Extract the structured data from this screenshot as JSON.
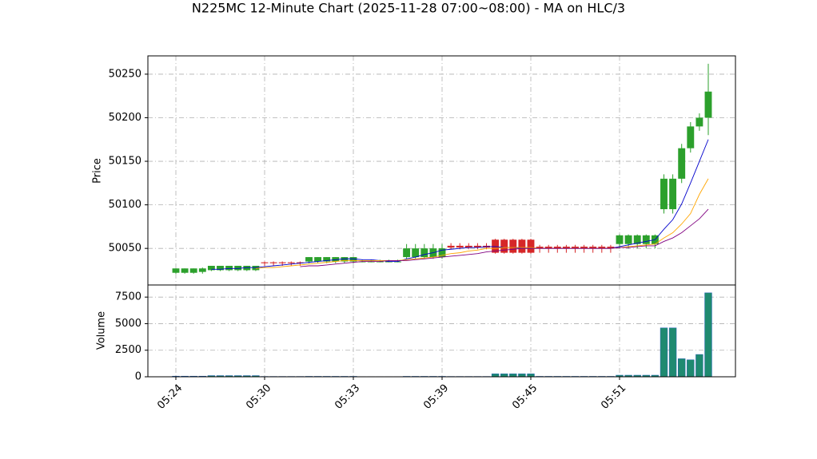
{
  "chart_data": [
    {
      "type": "candlestick",
      "title": "N225MC 12-Minute Chart (2025-11-28 07:00~08:00) - MA on HLC/3",
      "ylabel": "Price",
      "up_color": "#2ca02c",
      "down_color": "#d62728",
      "open": [
        50022,
        50022,
        50022,
        50023,
        50025,
        50025,
        50025,
        50025,
        50025,
        50025,
        50034,
        50034,
        50034,
        50034,
        50034,
        50035,
        50035,
        50035,
        50035,
        50035,
        50035,
        50035,
        50035,
        50035,
        50035,
        50035,
        50040,
        50040,
        50040,
        50040,
        50040,
        50053,
        50053,
        50053,
        50053,
        50053,
        50060,
        50060,
        50060,
        50060,
        50060,
        50052,
        50052,
        50052,
        50052,
        50052,
        50052,
        50052,
        50052,
        50052,
        50055,
        50055,
        50055,
        50055,
        50055,
        50095,
        50095,
        50130,
        50165,
        50190,
        50200
      ],
      "high": [
        50027,
        50027,
        50027,
        50028,
        50030,
        50030,
        50030,
        50030,
        50030,
        50030,
        50035,
        50035,
        50035,
        50035,
        50035,
        50040,
        50040,
        50040,
        50040,
        50040,
        50040,
        50037,
        50037,
        50037,
        50037,
        50037,
        50055,
        50055,
        50055,
        50055,
        50055,
        50056,
        50056,
        50056,
        50056,
        50056,
        50061,
        50061,
        50061,
        50061,
        50061,
        50054,
        50054,
        50054,
        50054,
        50054,
        50054,
        50054,
        50054,
        50054,
        50066,
        50066,
        50066,
        50066,
        50066,
        50135,
        50135,
        50170,
        50195,
        50205,
        50262
      ],
      "low": [
        50021,
        50021,
        50021,
        50021,
        50024,
        50024,
        50024,
        50024,
        50024,
        50024,
        50030,
        50030,
        50030,
        50030,
        50030,
        50033,
        50033,
        50033,
        50033,
        50033,
        50033,
        50034,
        50034,
        50034,
        50034,
        50034,
        50038,
        50038,
        50038,
        50038,
        50038,
        50049,
        50049,
        50049,
        50049,
        50049,
        50044,
        50044,
        50044,
        50044,
        50044,
        50045,
        50045,
        50045,
        50045,
        50045,
        50045,
        50045,
        50045,
        50045,
        50050,
        50050,
        50050,
        50050,
        50050,
        50090,
        50090,
        50125,
        50160,
        50185,
        50180
      ],
      "close": [
        50027,
        50027,
        50027,
        50027,
        50030,
        50030,
        50030,
        50030,
        50030,
        50030,
        50033,
        50033,
        50033,
        50033,
        50033,
        50040,
        50040,
        50040,
        50040,
        50040,
        50040,
        50035,
        50035,
        50035,
        50035,
        50035,
        50050,
        50050,
        50050,
        50050,
        50050,
        50051,
        50051,
        50051,
        50051,
        50051,
        50045,
        50045,
        50045,
        50045,
        50045,
        50050,
        50050,
        50050,
        50050,
        50050,
        50050,
        50050,
        50050,
        50050,
        50065,
        50065,
        50065,
        50065,
        50065,
        50130,
        50130,
        50165,
        50190,
        50200,
        50230
      ],
      "series": [
        {
          "color": "#0000cc",
          "values": [
            null,
            null,
            null,
            null,
            50026,
            50026,
            50027,
            50027,
            50028,
            50028,
            50029,
            50030,
            50031,
            50032,
            50033,
            50034,
            50035,
            50036,
            50037,
            50038,
            50038,
            50037,
            50037,
            50036,
            50035,
            50035,
            50038,
            50040,
            50043,
            50045,
            50048,
            50049,
            50050,
            50051,
            50051,
            50052,
            50052,
            50051,
            50051,
            50050,
            50050,
            50050,
            50050,
            50050,
            50050,
            50050,
            50050,
            50050,
            50050,
            50050,
            50052,
            50054,
            50056,
            50058,
            50060,
            50072,
            50083,
            50101,
            50125,
            50150,
            50175
          ]
        },
        {
          "color": "#ffa500",
          "values": [
            null,
            null,
            null,
            null,
            null,
            null,
            null,
            null,
            null,
            50027,
            50028,
            50028,
            50029,
            50030,
            50031,
            50032,
            50033,
            50034,
            50035,
            50036,
            50036,
            50036,
            50036,
            50036,
            50036,
            50036,
            50037,
            50038,
            50039,
            50040,
            50042,
            50044,
            50045,
            50047,
            50048,
            50050,
            50050,
            50051,
            50051,
            50051,
            50051,
            50050,
            50050,
            50050,
            50050,
            50050,
            50050,
            50050,
            50050,
            50050,
            50051,
            50052,
            50053,
            50054,
            50055,
            50062,
            50068,
            50078,
            50090,
            50112,
            50130
          ]
        },
        {
          "color": "#800080",
          "values": [
            null,
            null,
            null,
            null,
            null,
            null,
            null,
            null,
            null,
            null,
            null,
            null,
            null,
            null,
            50029,
            50030,
            50030,
            50031,
            50032,
            50033,
            50034,
            50035,
            50035,
            50035,
            50036,
            50036,
            50036,
            50037,
            50038,
            50039,
            50040,
            50041,
            50042,
            50043,
            50044,
            50046,
            50047,
            50048,
            50049,
            50050,
            50050,
            50050,
            50050,
            50050,
            50050,
            50050,
            50050,
            50050,
            50050,
            50050,
            50051,
            50051,
            50052,
            50053,
            50053,
            50058,
            50062,
            50068,
            50076,
            50084,
            50095
          ]
        }
      ],
      "ylim": [
        50008,
        50271
      ],
      "yticks": [
        50050,
        50100,
        50150,
        50200,
        50250
      ],
      "grid": true
    },
    {
      "type": "bar",
      "ylabel": "Volume",
      "color": "#1f8a70",
      "categories": [
        "05:24",
        null,
        null,
        null,
        null,
        null,
        null,
        null,
        null,
        null,
        "05:30",
        null,
        null,
        null,
        null,
        null,
        null,
        null,
        null,
        null,
        "05:33",
        null,
        null,
        null,
        null,
        null,
        null,
        null,
        null,
        null,
        "05:39",
        null,
        null,
        null,
        null,
        null,
        null,
        null,
        null,
        null,
        "05:45",
        null,
        null,
        null,
        null,
        null,
        null,
        null,
        null,
        null,
        "05:51",
        null,
        null,
        null,
        null,
        null,
        null,
        null,
        null,
        null,
        null
      ],
      "values": [
        60,
        60,
        60,
        60,
        110,
        110,
        110,
        110,
        110,
        110,
        30,
        30,
        30,
        30,
        30,
        40,
        40,
        40,
        40,
        40,
        40,
        20,
        20,
        20,
        20,
        20,
        40,
        40,
        40,
        40,
        40,
        30,
        30,
        30,
        30,
        30,
        280,
        280,
        280,
        280,
        280,
        40,
        40,
        40,
        40,
        40,
        40,
        40,
        40,
        40,
        150,
        150,
        150,
        150,
        150,
        4600,
        4600,
        1700,
        1600,
        2100,
        7900
      ],
      "ylim": [
        0,
        8640
      ],
      "yticks": [
        0,
        2500,
        5000,
        7500
      ],
      "grid": true
    }
  ]
}
